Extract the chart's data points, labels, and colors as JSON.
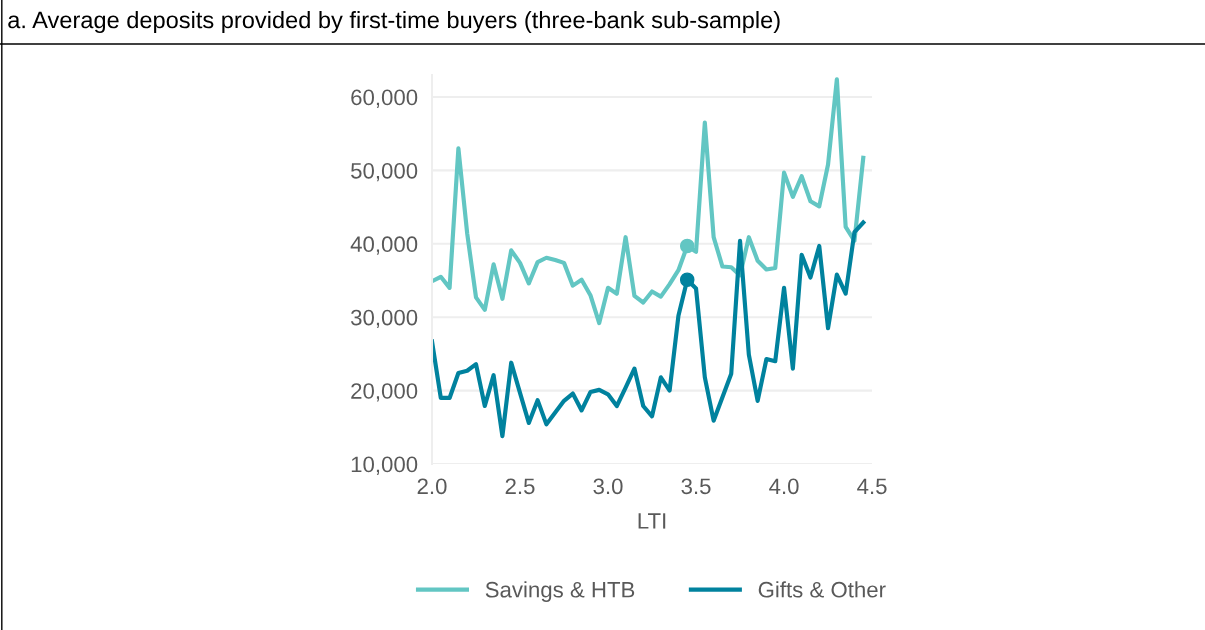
{
  "chart_data": {
    "type": "line",
    "title": "a. Average deposits provided by first-time buyers (three-bank sub-sample)",
    "xlabel": "LTI",
    "x": [
      2.0,
      2.05,
      2.1,
      2.15,
      2.2,
      2.25,
      2.3,
      2.35,
      2.4,
      2.45,
      2.5,
      2.55,
      2.6,
      2.65,
      2.7,
      2.75,
      2.8,
      2.85,
      2.9,
      2.95,
      3.0,
      3.05,
      3.1,
      3.15,
      3.2,
      3.25,
      3.3,
      3.35,
      3.4,
      3.45,
      3.5,
      3.55,
      3.6,
      3.65,
      3.7,
      3.75,
      3.8,
      3.85,
      3.9,
      3.95,
      4.0,
      4.05,
      4.1,
      4.15,
      4.2,
      4.25,
      4.3,
      4.35,
      4.4,
      4.45
    ],
    "series": [
      {
        "name": "Savings & HTB",
        "color": "#62c6c3",
        "values": [
          34900,
          35500,
          34000,
          53000,
          41400,
          32700,
          31000,
          37200,
          32500,
          39100,
          37400,
          34600,
          37500,
          38100,
          37800,
          37400,
          34300,
          35100,
          33000,
          29200,
          34000,
          33200,
          40900,
          32900,
          32000,
          33500,
          32800,
          34500,
          36400,
          39700,
          38900,
          56500,
          40900,
          36900,
          36800,
          35700,
          40900,
          37700,
          36500,
          36700,
          49700,
          46400,
          49200,
          45800,
          45100,
          50800,
          62400,
          42300,
          40400,
          51700
        ],
        "marker": "none"
      },
      {
        "name": "Gifts & Other",
        "color": "#00829e",
        "values": [
          26700,
          19000,
          19000,
          22400,
          22700,
          23600,
          17900,
          22100,
          13800,
          23800,
          19700,
          15600,
          18700,
          15400,
          17000,
          18600,
          19600,
          17300,
          19800,
          20100,
          19500,
          17900,
          20400,
          23000,
          17900,
          16500,
          21800,
          20000,
          30200,
          35100,
          33900,
          21800,
          15900,
          19100,
          22300,
          40400,
          24900,
          18600,
          24300,
          24000,
          34000,
          23000,
          38500,
          35400,
          39700,
          28500,
          35800,
          33200,
          41600,
          42900
        ],
        "marker": "none"
      },
      {
        "type": "scatter",
        "x": [
          3.45
        ],
        "color": "#62c6c3",
        "values": [
          39700
        ],
        "marker": "circle"
      },
      {
        "type": "scatter",
        "x": [
          3.45
        ],
        "color": "#00829e",
        "values": [
          35100
        ],
        "marker": "circle"
      }
    ],
    "xlim": [
      2.0,
      4.5
    ],
    "xticks": [
      {
        "value": 2.0,
        "label": "2.0"
      },
      {
        "value": 2.5,
        "label": "2.5"
      },
      {
        "value": 3.0,
        "label": "3.0"
      },
      {
        "value": 3.5,
        "label": "3.5"
      },
      {
        "value": 4.0,
        "label": "4.0"
      },
      {
        "value": 4.5,
        "label": "4.5"
      }
    ],
    "ylim": [
      10000,
      63000
    ],
    "yticks": [
      {
        "value": 10000,
        "label": "10,000"
      },
      {
        "value": 20000,
        "label": "20,000"
      },
      {
        "value": 30000,
        "label": "30,000"
      },
      {
        "value": 40000,
        "label": "40,000"
      },
      {
        "value": 50000,
        "label": "50,000"
      },
      {
        "value": 60000,
        "label": "60,000"
      }
    ],
    "grid": "y",
    "legend": "bottom",
    "line_style": "solid"
  }
}
